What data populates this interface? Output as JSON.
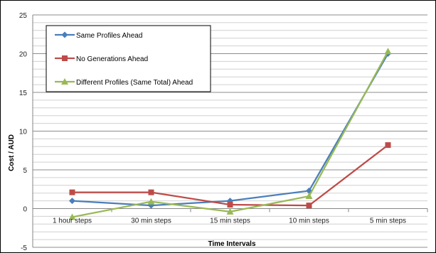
{
  "chart_data": {
    "type": "line",
    "title": "",
    "xlabel": "Time Intervals",
    "ylabel": "Cost / AUD",
    "categories": [
      "1 hour steps",
      "30 min steps",
      "15 min steps",
      "10 min steps",
      "5 min steps"
    ],
    "ylim": [
      -5,
      25
    ],
    "yticks": [
      -5,
      0,
      5,
      10,
      15,
      20,
      25
    ],
    "grid": true,
    "legend_position": "top-left",
    "series": [
      {
        "name": "Same Profiles Ahead",
        "color": "#4a7ebb",
        "marker": "diamond",
        "values": [
          1.0,
          0.4,
          1.0,
          2.3,
          20.0
        ]
      },
      {
        "name": "No Generations Ahead",
        "color": "#be4b48",
        "marker": "square",
        "values": [
          2.1,
          2.1,
          0.5,
          0.4,
          8.2
        ]
      },
      {
        "name": "Different Profiles (Same Total) Ahead",
        "color": "#98b954",
        "marker": "triangle",
        "values": [
          -1.1,
          0.9,
          -0.4,
          1.6,
          20.3
        ]
      }
    ]
  }
}
